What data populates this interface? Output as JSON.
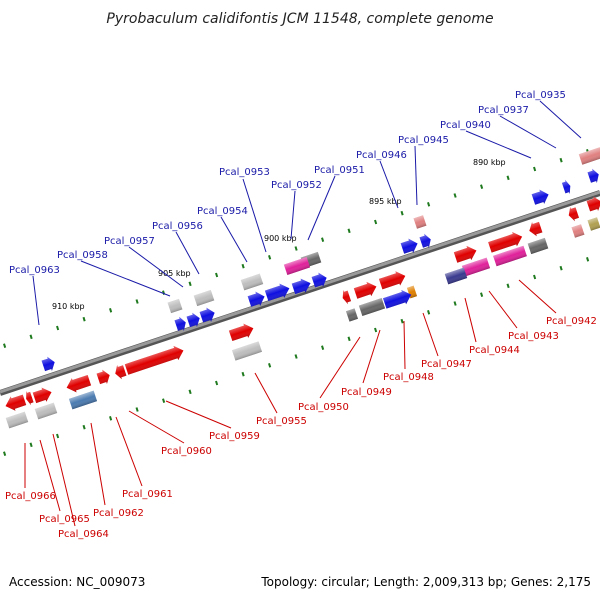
{
  "title": "Pyrobaculum calidifontis JCM 11548, complete genome",
  "footer": {
    "accession": "Accession: NC_009073",
    "topology": "Topology: circular; Length: 2,009,313 bp; Genes: 2,175"
  },
  "scale_labels": [
    "890 kbp",
    "895 kbp",
    "900 kbp",
    "905 kbp",
    "910 kbp"
  ],
  "top_labels": [
    "Pcal_0935",
    "Pcal_0937",
    "Pcal_0940",
    "Pcal_0945",
    "Pcal_0946",
    "Pcal_0951",
    "Pcal_0952",
    "Pcal_0953",
    "Pcal_0954",
    "Pcal_0956",
    "Pcal_0957",
    "Pcal_0958",
    "Pcal_0963"
  ],
  "bottom_labels": [
    "Pcal_0942",
    "Pcal_0943",
    "Pcal_0944",
    "Pcal_0947",
    "Pcal_0948",
    "Pcal_0949",
    "Pcal_0950",
    "Pcal_0955",
    "Pcal_0959",
    "Pcal_0960",
    "Pcal_0961",
    "Pcal_0962",
    "Pcal_0964",
    "Pcal_0965",
    "Pcal_0966"
  ],
  "colors": {
    "backbone": "#808080",
    "tick": "#1f7a1f",
    "red": "#e00000",
    "blue": "#1010e0",
    "magenta": "#e0209a",
    "gray": "#666666",
    "lightgray": "#bdbdbd",
    "navy": "#3a3a90",
    "steelblue": "#4a7ab0",
    "pink": "#e08080",
    "orange": "#e08000",
    "olive": "#b0a050",
    "top_label": "#1a1aa8",
    "bottom_label": "#cc0000"
  },
  "icons": [
    "gene-arrow",
    "gene-block"
  ]
}
